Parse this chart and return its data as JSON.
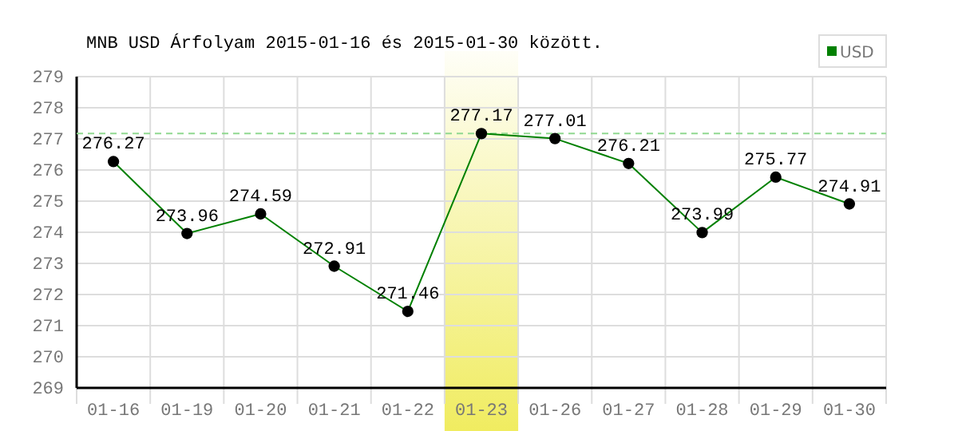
{
  "chart_data": {
    "type": "line",
    "title": "MNB USD Árfolyam 2015-01-16 és 2015-01-30 között.",
    "categories": [
      "01-16",
      "01-19",
      "01-20",
      "01-21",
      "01-22",
      "01-23",
      "01-26",
      "01-27",
      "01-28",
      "01-29",
      "01-30"
    ],
    "series": [
      {
        "name": "USD",
        "color": "#008000",
        "values": [
          276.27,
          273.96,
          274.59,
          272.91,
          271.46,
          277.17,
          277.01,
          276.21,
          273.99,
          275.77,
          274.91
        ]
      }
    ],
    "ylim": [
      269,
      279
    ],
    "yticks": [
      269,
      270,
      271,
      272,
      273,
      274,
      275,
      276,
      277,
      278,
      279
    ],
    "grid": true,
    "legend": "top right",
    "marker": "circle",
    "line_style": "solid",
    "data_labels": true,
    "ref_lines": [
      {
        "axis": "y",
        "value": 277.17,
        "color": "#90d890",
        "line_style": "dashed"
      }
    ],
    "bands": [
      {
        "axis": "x",
        "from": "01-23",
        "to": "01-23",
        "color": "#f0ec60"
      }
    ]
  }
}
